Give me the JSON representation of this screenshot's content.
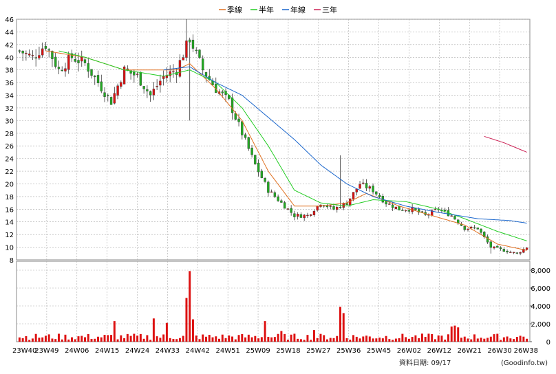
{
  "legend": [
    {
      "label": "季線",
      "color": "#e07020"
    },
    {
      "label": "半年",
      "color": "#22cc22"
    },
    {
      "label": "年線",
      "color": "#1a66cc"
    },
    {
      "label": "三年",
      "color": "#cc2255"
    }
  ],
  "footer": {
    "date_label": "資料日期: 09/17",
    "source": "(Goodinfo.tw)"
  },
  "colors": {
    "up": "#dd1111",
    "down": "#22aa22",
    "grid": "#aaaaaa",
    "volume": "#dd1111"
  },
  "chart_data": [
    {
      "type": "candlestick",
      "title": "",
      "ylim": [
        8,
        46
      ],
      "yticks": [
        8,
        10,
        12,
        14,
        16,
        18,
        20,
        22,
        24,
        26,
        28,
        30,
        32,
        34,
        36,
        38,
        40,
        42,
        44,
        46
      ],
      "x_tick_labels": [
        "23W40",
        "23W49",
        "24W06",
        "24W15",
        "24W24",
        "24W33",
        "24W42",
        "24W51",
        "25W09",
        "25W18",
        "25W27",
        "25W36",
        "25W45",
        "26W02",
        "26W12",
        "26W21",
        "26W30",
        "26W38"
      ],
      "weeks": 156,
      "close_path": [
        [
          0,
          41
        ],
        [
          4,
          40
        ],
        [
          8,
          42
        ],
        [
          12,
          38
        ],
        [
          16,
          40
        ],
        [
          20,
          39
        ],
        [
          24,
          36
        ],
        [
          28,
          33
        ],
        [
          32,
          38
        ],
        [
          36,
          37
        ],
        [
          40,
          34
        ],
        [
          44,
          37
        ],
        [
          48,
          38
        ],
        [
          52,
          43
        ],
        [
          56,
          38
        ],
        [
          60,
          35
        ],
        [
          64,
          33
        ],
        [
          68,
          28
        ],
        [
          72,
          23
        ],
        [
          76,
          19
        ],
        [
          80,
          17
        ],
        [
          84,
          15
        ],
        [
          88,
          15
        ],
        [
          92,
          17
        ],
        [
          96,
          16
        ],
        [
          100,
          17
        ],
        [
          104,
          20
        ],
        [
          108,
          19
        ],
        [
          112,
          17
        ],
        [
          116,
          16
        ],
        [
          120,
          16
        ],
        [
          124,
          15
        ],
        [
          128,
          16
        ],
        [
          132,
          15
        ],
        [
          136,
          13
        ],
        [
          140,
          13
        ],
        [
          144,
          10
        ],
        [
          148,
          9.5
        ],
        [
          152,
          9
        ],
        [
          155,
          10
        ]
      ],
      "wick_spikes": [
        [
          51,
          46
        ],
        [
          52,
          30
        ],
        [
          98,
          24.5
        ],
        [
          144,
          9
        ]
      ],
      "series": [
        {
          "name": "季線",
          "points": [
            [
              8,
              41
            ],
            [
              20,
              40
            ],
            [
              32,
              38
            ],
            [
              48,
              38
            ],
            [
              52,
              39
            ],
            [
              60,
              35
            ],
            [
              68,
              30
            ],
            [
              76,
              22
            ],
            [
              84,
              16.5
            ],
            [
              92,
              16.5
            ],
            [
              100,
              17
            ],
            [
              106,
              18.5
            ],
            [
              116,
              16.5
            ],
            [
              126,
              15
            ],
            [
              136,
              13.5
            ],
            [
              146,
              10.5
            ],
            [
              155,
              9.5
            ]
          ]
        },
        {
          "name": "半年",
          "points": [
            [
              12,
              41
            ],
            [
              20,
              40
            ],
            [
              32,
              38
            ],
            [
              44,
              37
            ],
            [
              52,
              38
            ],
            [
              60,
              36
            ],
            [
              68,
              32
            ],
            [
              76,
              26
            ],
            [
              84,
              19
            ],
            [
              92,
              17
            ],
            [
              100,
              16.5
            ],
            [
              108,
              17.5
            ],
            [
              118,
              17.2
            ],
            [
              128,
              16
            ],
            [
              136,
              14.5
            ],
            [
              146,
              12.5
            ],
            [
              155,
              11
            ]
          ]
        },
        {
          "name": "年線",
          "points": [
            [
              44,
              38
            ],
            [
              52,
              38.5
            ],
            [
              60,
              36
            ],
            [
              68,
              34
            ],
            [
              76,
              30.5
            ],
            [
              84,
              27
            ],
            [
              92,
              23
            ],
            [
              100,
              20
            ],
            [
              108,
              18
            ],
            [
              118,
              16.5
            ],
            [
              128,
              15.5
            ],
            [
              140,
              14.5
            ],
            [
              150,
              14.2
            ],
            [
              155,
              13.8
            ]
          ]
        },
        {
          "name": "三年",
          "points": [
            [
              142,
              27.5
            ],
            [
              148,
              26.5
            ],
            [
              155,
              25
            ]
          ]
        }
      ]
    },
    {
      "type": "bar",
      "title": "",
      "ylim": [
        0,
        9000
      ],
      "yticks": [
        0,
        2000,
        4000,
        6000,
        8000
      ],
      "ytick_labels": [
        "0",
        "2,000",
        "4,000",
        "6,000",
        "8,000"
      ],
      "spikes": [
        [
          52,
          7900
        ],
        [
          51,
          4900
        ],
        [
          53,
          2500
        ],
        [
          98,
          3900
        ],
        [
          99,
          3200
        ],
        [
          75,
          2300
        ],
        [
          41,
          2600
        ],
        [
          45,
          2100
        ],
        [
          29,
          2300
        ],
        [
          132,
          1700
        ],
        [
          133,
          1800
        ],
        [
          134,
          1600
        ],
        [
          80,
          1200
        ],
        [
          90,
          1300
        ]
      ],
      "base_level": 550
    }
  ]
}
